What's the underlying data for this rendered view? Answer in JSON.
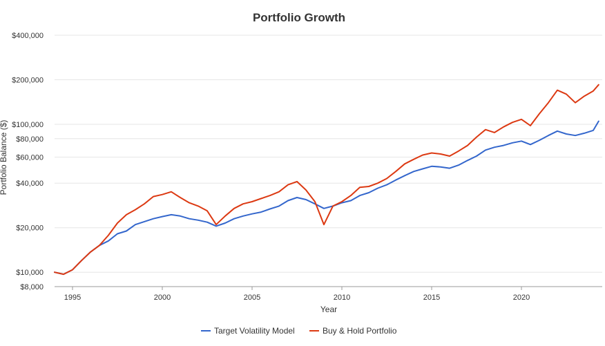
{
  "chart_data": {
    "type": "line",
    "title": "Portfolio Growth",
    "xlabel": "Year",
    "ylabel": "Portfolio Balance ($)",
    "yscale": "log",
    "ylim": [
      8000,
      400000
    ],
    "xlim": [
      1994.0,
      2024.5
    ],
    "grid": true,
    "legend_position": "bottom-center",
    "y_ticks": [
      {
        "value": 8000,
        "label": "$8,000"
      },
      {
        "value": 10000,
        "label": "$10,000"
      },
      {
        "value": 20000,
        "label": "$20,000"
      },
      {
        "value": 40000,
        "label": "$40,000"
      },
      {
        "value": 60000,
        "label": "$60,000"
      },
      {
        "value": 80000,
        "label": "$80,000"
      },
      {
        "value": 100000,
        "label": "$100,000"
      },
      {
        "value": 200000,
        "label": "$200,000"
      },
      {
        "value": 400000,
        "label": "$400,000"
      }
    ],
    "x_ticks": [
      {
        "value": 1995,
        "label": "1995"
      },
      {
        "value": 2000,
        "label": "2000"
      },
      {
        "value": 2005,
        "label": "2005"
      },
      {
        "value": 2010,
        "label": "2010"
      },
      {
        "value": 2015,
        "label": "2015"
      },
      {
        "value": 2020,
        "label": "2020"
      }
    ],
    "x": [
      1994.0,
      1994.5,
      1995.0,
      1995.5,
      1996.0,
      1996.5,
      1997.0,
      1997.5,
      1998.0,
      1998.5,
      1999.0,
      1999.5,
      2000.0,
      2000.5,
      2001.0,
      2001.5,
      2002.0,
      2002.5,
      2003.0,
      2003.5,
      2004.0,
      2004.5,
      2005.0,
      2005.5,
      2006.0,
      2006.5,
      2007.0,
      2007.5,
      2008.0,
      2008.5,
      2009.0,
      2009.5,
      2010.0,
      2010.5,
      2011.0,
      2011.5,
      2012.0,
      2012.5,
      2013.0,
      2013.5,
      2014.0,
      2014.5,
      2015.0,
      2015.5,
      2016.0,
      2016.5,
      2017.0,
      2017.5,
      2018.0,
      2018.5,
      2019.0,
      2019.5,
      2020.0,
      2020.5,
      2021.0,
      2021.5,
      2022.0,
      2022.5,
      2023.0,
      2023.5,
      2024.0,
      2024.3
    ],
    "series": [
      {
        "name": "Target Volatility Model",
        "color": "#3366cc",
        "values": [
          10000,
          9700,
          10400,
          12000,
          13700,
          15200,
          16300,
          18200,
          19000,
          21000,
          22000,
          23000,
          23800,
          24500,
          24000,
          23000,
          22500,
          21800,
          20500,
          21500,
          23000,
          24000,
          24800,
          25500,
          26800,
          28000,
          30500,
          32000,
          31000,
          29000,
          27000,
          28000,
          29500,
          30500,
          33000,
          34500,
          37000,
          39000,
          42000,
          45000,
          48000,
          50000,
          52000,
          51500,
          50500,
          53000,
          57000,
          61000,
          67000,
          70000,
          72000,
          75000,
          77000,
          73000,
          78000,
          84000,
          90000,
          86000,
          84000,
          87000,
          91000,
          105000
        ]
      },
      {
        "name": "Buy & Hold Portfolio",
        "color": "#dc3912",
        "values": [
          10000,
          9700,
          10400,
          12000,
          13700,
          15200,
          17800,
          21500,
          24500,
          26500,
          29000,
          32500,
          33500,
          35000,
          32000,
          29500,
          28000,
          26000,
          21000,
          24000,
          27000,
          29000,
          30000,
          31500,
          33000,
          35000,
          39000,
          41000,
          36000,
          30000,
          21000,
          28000,
          30000,
          33000,
          37500,
          38000,
          40000,
          43000,
          48000,
          54000,
          58000,
          62000,
          64000,
          63000,
          61000,
          66000,
          72000,
          82000,
          92000,
          88000,
          96000,
          103000,
          108000,
          98000,
          118000,
          140000,
          170000,
          160000,
          140000,
          155000,
          168000,
          185000
        ]
      }
    ]
  }
}
